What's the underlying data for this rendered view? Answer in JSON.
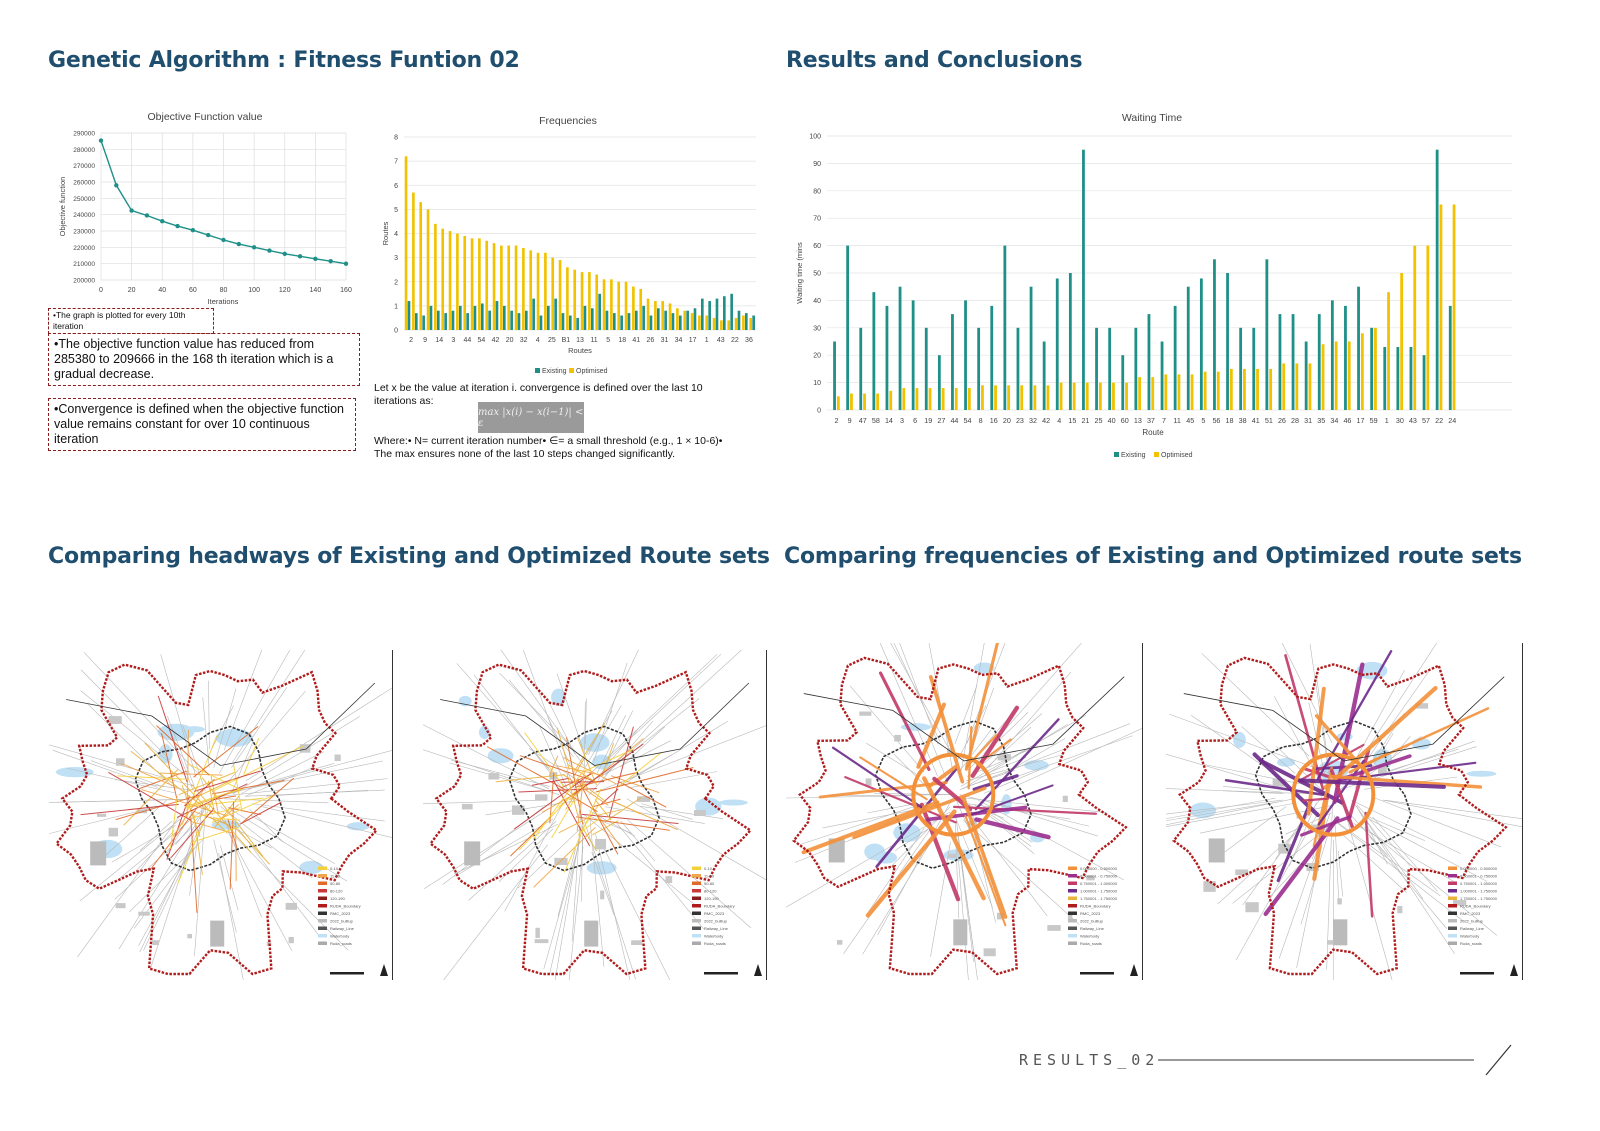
{
  "headings": {
    "ga": "Genetic Algorithm : Fitness Funtion 02",
    "results": "Results and Conclusions",
    "headways": "Comparing headways of Existing and Optimized Route sets",
    "frequencies": "Comparing frequencies of Existing and Optimized route sets"
  },
  "notes": {
    "plotted": "•The graph is plotted for every 10th iteration",
    "reduced": "•The objective function value has reduced from 285380 to 209666  in the 168 th iteration which is a gradual decrease.",
    "convergence": "•Convergence is defined when the objective function value remains constant for over 10 continuous iteration"
  },
  "text": {
    "let": "Let x be the value at iteration i. convergence is defined over the last 10 iterations as:",
    "formula": "max |x(i) − x(i−1)| < ε",
    "where": "Where:• N= current iteration number• ∈= a small threshold (e.g., 1 × 10-6)•",
    "maxensures": "The max ensures none of the last 10 steps changed significantly."
  },
  "footer": {
    "label": "RESULTS_02"
  },
  "map_legends": {
    "headway": [
      "0-10",
      "11-50",
      "50-80",
      "80-120",
      "120-190",
      "RUDA_Boundary",
      "RMC_2023",
      "2022_builtup",
      "Railway_Line",
      "Waterbody",
      "Ruda_roads"
    ],
    "frequency": [
      "0.000000 - 0.500000",
      "0.500001 - 0.750000",
      "0.750001 - 1.000000",
      "1.000001 - 1.750000",
      "1.750001 - 1.750000",
      "RUDA_Boundary",
      "RMC_2023",
      "2022_builtup",
      "Railway_Line",
      "Waterbody",
      "Ruda_roads"
    ]
  },
  "colors": {
    "heading": "#1f4e6e",
    "existing": "#1f9088",
    "optimised": "#f2c200",
    "boundary": "#b01c1c"
  },
  "chart_data": [
    {
      "type": "line",
      "title": "Objective Function value",
      "xlabel": "Iterations",
      "ylabel": "Objective function",
      "x": [
        0,
        10,
        20,
        30,
        40,
        50,
        60,
        70,
        80,
        90,
        100,
        110,
        120,
        130,
        140,
        150,
        160
      ],
      "y": [
        285380,
        258000,
        242500,
        239500,
        236000,
        233000,
        230500,
        227500,
        224500,
        222000,
        220000,
        218000,
        216000,
        214500,
        213000,
        211500,
        210000
      ],
      "xlim": [
        0,
        160
      ],
      "ylim": [
        200000,
        290000
      ],
      "xticks": [
        0,
        20,
        40,
        60,
        80,
        100,
        120,
        140,
        160
      ],
      "yticks": [
        200000,
        210000,
        220000,
        230000,
        240000,
        250000,
        260000,
        270000,
        280000,
        290000
      ],
      "grid": true
    },
    {
      "type": "bar",
      "title": "Frequencies",
      "xlabel": "Routes",
      "ylabel": "Routes",
      "ylim": [
        0,
        8
      ],
      "yticks": [
        0,
        1,
        2,
        3,
        4,
        5,
        6,
        7,
        8
      ],
      "tick_labels": [
        "2",
        "9",
        "14",
        "3",
        "44",
        "54",
        "42",
        "20",
        "32",
        "4",
        "25",
        "B1",
        "13",
        "11",
        "5",
        "18",
        "41",
        "26",
        "31",
        "34",
        "17",
        "1",
        "43",
        "22",
        "36"
      ],
      "legend": [
        "Existing",
        "Optimised"
      ],
      "legend_position": "bottom",
      "series": [
        {
          "name": "Existing",
          "values": [
            1.2,
            0.7,
            0.6,
            1.0,
            0.8,
            0.7,
            0.8,
            1.0,
            0.7,
            1.0,
            1.1,
            0.8,
            1.2,
            1.0,
            0.8,
            0.7,
            0.8,
            1.3,
            0.6,
            1.0,
            1.3,
            0.7,
            0.6,
            0.5,
            1.0,
            0.9,
            1.5,
            0.8,
            0.7,
            0.6,
            0.7,
            0.8,
            1.0,
            0.6,
            0.9,
            0.8,
            0.7,
            0.6,
            0.8,
            0.9,
            1.3,
            1.2,
            1.3,
            1.4,
            1.5,
            0.8,
            0.7,
            0.6
          ]
        },
        {
          "name": "Optimised",
          "values": [
            7.2,
            5.7,
            5.3,
            5.0,
            4.4,
            4.2,
            4.1,
            4.0,
            3.9,
            3.8,
            3.8,
            3.7,
            3.6,
            3.5,
            3.5,
            3.5,
            3.4,
            3.3,
            3.2,
            3.2,
            3.0,
            2.9,
            2.6,
            2.5,
            2.4,
            2.4,
            2.3,
            2.1,
            2.1,
            2.0,
            2.0,
            1.8,
            1.7,
            1.3,
            1.2,
            1.2,
            1.1,
            0.9,
            0.8,
            0.7,
            0.6,
            0.6,
            0.5,
            0.4,
            0.4,
            0.5,
            0.6,
            0.5
          ]
        }
      ]
    },
    {
      "type": "bar",
      "title": "Waiting Time",
      "xlabel": "Route",
      "ylabel": "Waiting time (mins",
      "ylim": [
        0,
        100
      ],
      "yticks": [
        0,
        10,
        20,
        30,
        40,
        50,
        60,
        70,
        80,
        90,
        100
      ],
      "categories": [
        "2",
        "9",
        "47",
        "58",
        "14",
        "3",
        "6",
        "19",
        "27",
        "44",
        "54",
        "8",
        "16",
        "20",
        "23",
        "32",
        "42",
        "4",
        "15",
        "21",
        "25",
        "40",
        "60",
        "13",
        "37",
        "7",
        "11",
        "45",
        "5",
        "56",
        "18",
        "38",
        "41",
        "51",
        "26",
        "28",
        "31",
        "35",
        "34",
        "46",
        "17",
        "59",
        "1",
        "30",
        "43",
        "57",
        "22",
        "24"
      ],
      "legend": [
        "Existing",
        "Optimised"
      ],
      "legend_position": "bottom",
      "series": [
        {
          "name": "Existing",
          "values": [
            25,
            60,
            30,
            43,
            38,
            45,
            40,
            30,
            20,
            35,
            40,
            30,
            38,
            60,
            30,
            45,
            25,
            48,
            50,
            95,
            30,
            30,
            20,
            30,
            35,
            25,
            38,
            45,
            48,
            55,
            50,
            30,
            30,
            55,
            35,
            35,
            25,
            35,
            40,
            38,
            45,
            30,
            23,
            23,
            23,
            20,
            95,
            38
          ]
        },
        {
          "name": "Optimised",
          "values": [
            5,
            6,
            6,
            6,
            7,
            8,
            8,
            8,
            8,
            8,
            8,
            9,
            9,
            9,
            9,
            9,
            9,
            10,
            10,
            10,
            10,
            10,
            10,
            12,
            12,
            13,
            13,
            13,
            14,
            14,
            15,
            15,
            15,
            15,
            17,
            17,
            17,
            24,
            25,
            25,
            28,
            30,
            43,
            50,
            60,
            60,
            75,
            75
          ]
        }
      ]
    }
  ]
}
